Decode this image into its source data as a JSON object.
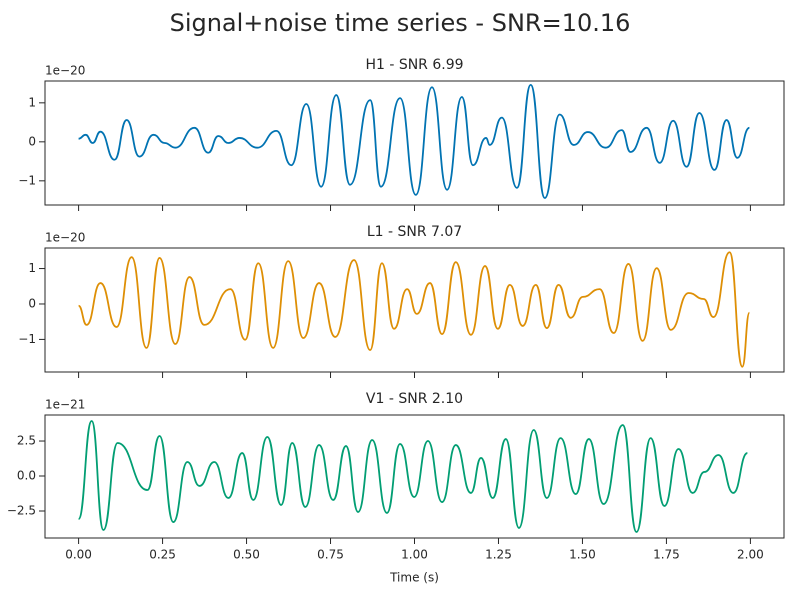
{
  "title": "Signal+noise time series - SNR=10.16",
  "chart_data": [
    {
      "type": "line",
      "title": "H1 - SNR 6.99",
      "offset_text": "1e−20",
      "color": "#0173b2",
      "x": [
        0,
        0.021,
        0.042,
        0.065,
        0.107,
        0.143,
        0.181,
        0.223,
        0.256,
        0.288,
        0.345,
        0.386,
        0.416,
        0.446,
        0.479,
        0.532,
        0.589,
        0.633,
        0.678,
        0.722,
        0.767,
        0.808,
        0.868,
        0.9,
        0.957,
        1.004,
        1.052,
        1.097,
        1.141,
        1.174,
        1.213,
        1.224,
        1.26,
        1.305,
        1.346,
        1.388,
        1.432,
        1.474,
        1.516,
        1.569,
        1.617,
        1.643,
        1.691,
        1.73,
        1.77,
        1.81,
        1.848,
        1.893,
        1.929,
        1.961,
        1.997
      ],
      "values": [
        0.08,
        0.18,
        -0.03,
        0.26,
        -0.46,
        0.56,
        -0.38,
        0.18,
        -0.03,
        -0.15,
        0.36,
        -0.28,
        0.15,
        -0.03,
        0.1,
        -0.15,
        0.28,
        -0.6,
        0.97,
        -1.15,
        1.2,
        -1.1,
        1.07,
        -1.15,
        1.12,
        -1.36,
        1.4,
        -1.23,
        1.15,
        -0.6,
        0.1,
        -0.08,
        0.62,
        -1.18,
        1.46,
        -1.44,
        0.7,
        -0.08,
        0.25,
        -0.15,
        0.3,
        -0.26,
        0.36,
        -0.54,
        0.54,
        -0.64,
        0.74,
        -0.72,
        0.56,
        -0.41,
        0.36
      ],
      "xlim": [
        -0.1,
        2.1
      ],
      "ylim": [
        -1.62,
        1.56
      ],
      "xticks": [
        0,
        0.25,
        0.5,
        0.75,
        1,
        1.25,
        1.5,
        1.75,
        2
      ],
      "yticks": [
        {
          "value": -1,
          "label": "−1"
        },
        0,
        1
      ]
    },
    {
      "type": "line",
      "title": "L1 - SNR 7.07",
      "offset_text": "1e−20",
      "color": "#de8f05",
      "x": [
        0,
        0.024,
        0.065,
        0.113,
        0.158,
        0.202,
        0.241,
        0.288,
        0.33,
        0.374,
        0.452,
        0.496,
        0.535,
        0.579,
        0.624,
        0.669,
        0.716,
        0.764,
        0.82,
        0.868,
        0.903,
        0.939,
        0.978,
        1.007,
        1.046,
        1.082,
        1.123,
        1.168,
        1.21,
        1.248,
        1.284,
        1.322,
        1.361,
        1.394,
        1.429,
        1.465,
        1.501,
        1.551,
        1.593,
        1.637,
        1.679,
        1.721,
        1.763,
        1.816,
        1.861,
        1.89,
        1.938,
        1.976,
        1.997
      ],
      "values": [
        -0.05,
        -0.59,
        0.59,
        -0.65,
        1.32,
        -1.24,
        1.3,
        -1.13,
        0.76,
        -0.59,
        0.42,
        -1.01,
        1.15,
        -1.24,
        1.21,
        -0.96,
        0.59,
        -0.93,
        1.24,
        -1.3,
        1.15,
        -0.7,
        0.42,
        -0.28,
        0.59,
        -0.85,
        1.18,
        -0.87,
        1.07,
        -0.7,
        0.54,
        -0.62,
        0.54,
        -0.68,
        0.54,
        -0.39,
        0.2,
        0.42,
        -0.82,
        1.13,
        -1.04,
        1.01,
        -0.73,
        0.31,
        0.14,
        -0.37,
        1.46,
        -1.77,
        -0.25
      ],
      "xlim": [
        -0.1,
        2.1
      ],
      "ylim": [
        -1.92,
        1.58
      ],
      "xticks": [
        0,
        0.25,
        0.5,
        0.75,
        1,
        1.25,
        1.5,
        1.75,
        2
      ],
      "yticks": [
        {
          "value": -1,
          "label": "−1"
        },
        0,
        1
      ]
    },
    {
      "type": "line",
      "title": "V1 - SNR 2.10",
      "offset_text": "1e−21",
      "color": "#029e73",
      "xlabel": "Time (s)",
      "x": [
        0,
        0.039,
        0.074,
        0.116,
        0.205,
        0.241,
        0.282,
        0.324,
        0.36,
        0.404,
        0.446,
        0.487,
        0.52,
        0.562,
        0.603,
        0.636,
        0.675,
        0.716,
        0.758,
        0.796,
        0.832,
        0.874,
        0.918,
        0.957,
        0.999,
        1.04,
        1.082,
        1.123,
        1.168,
        1.198,
        1.233,
        1.272,
        1.311,
        1.355,
        1.394,
        1.435,
        1.48,
        1.519,
        1.563,
        1.62,
        1.661,
        1.703,
        1.744,
        1.786,
        1.828,
        1.863,
        1.905,
        1.949,
        1.991
      ],
      "values": [
        -3.07,
        3.93,
        -3.86,
        2.36,
        -1.0,
        2.86,
        -3.29,
        1.0,
        -0.71,
        1.0,
        -1.57,
        1.64,
        -1.71,
        2.79,
        -2.07,
        2.36,
        -2.21,
        2.21,
        -1.71,
        2.14,
        -2.57,
        2.57,
        -2.64,
        2.29,
        -1.5,
        2.5,
        -1.86,
        2.21,
        -1.21,
        1.29,
        -1.57,
        2.64,
        -3.71,
        3.29,
        -1.57,
        2.71,
        -1.29,
        2.64,
        -2.0,
        3.64,
        -4.0,
        2.71,
        -2.14,
        1.93,
        -1.21,
        0.29,
        1.5,
        -1.21,
        1.64
      ],
      "xlim": [
        -0.1,
        2.1
      ],
      "ylim": [
        -4.43,
        4.36
      ],
      "xticks": [
        {
          "value": 0,
          "label": "0.00"
        },
        {
          "value": 0.25,
          "label": "0.25"
        },
        {
          "value": 0.5,
          "label": "0.50"
        },
        {
          "value": 0.75,
          "label": "0.75"
        },
        {
          "value": 1,
          "label": "1.00"
        },
        {
          "value": 1.25,
          "label": "1.25"
        },
        {
          "value": 1.5,
          "label": "1.50"
        },
        {
          "value": 1.75,
          "label": "1.75"
        },
        {
          "value": 2,
          "label": "2.00"
        }
      ],
      "yticks": [
        {
          "value": -2.5,
          "label": "−2.5"
        },
        {
          "value": 0,
          "label": "0.0"
        },
        2.5
      ]
    }
  ]
}
